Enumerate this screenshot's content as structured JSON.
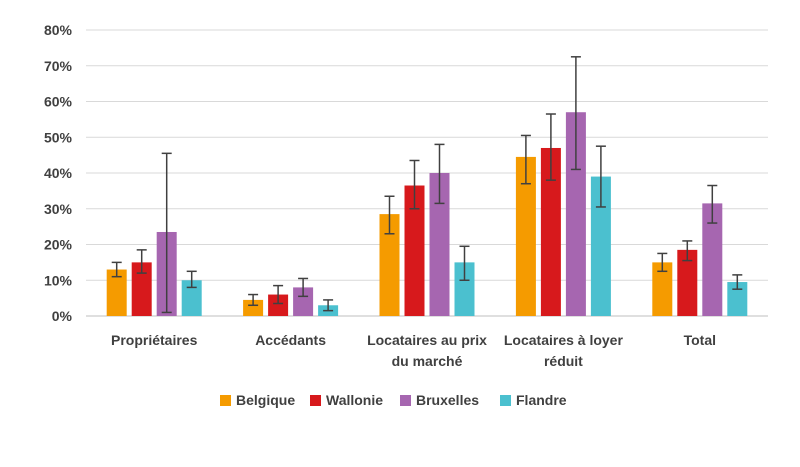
{
  "chart_data": {
    "type": "bar",
    "categories": [
      [
        "Propriétaires"
      ],
      [
        "Accédants"
      ],
      [
        "Locataires au prix",
        "du marché"
      ],
      [
        "Locataires à loyer",
        "réduit"
      ],
      [
        "Total"
      ]
    ],
    "ylim": [
      0,
      0.8
    ],
    "yticks": [
      {
        "value": 0.0,
        "label": "0%"
      },
      {
        "value": 0.1,
        "label": "10%"
      },
      {
        "value": 0.2,
        "label": "20%"
      },
      {
        "value": 0.3,
        "label": "30%"
      },
      {
        "value": 0.4,
        "label": "40%"
      },
      {
        "value": 0.5,
        "label": "50%"
      },
      {
        "value": 0.6,
        "label": "60%"
      },
      {
        "value": 0.7,
        "label": "70%"
      },
      {
        "value": 0.8,
        "label": "80%"
      }
    ],
    "grid": true,
    "legend_position": "bottom",
    "series": [
      {
        "name": "Belgique",
        "color": "#F59B00",
        "values": [
          0.13,
          0.045,
          0.285,
          0.445,
          0.15
        ],
        "err_low": [
          0.11,
          0.03,
          0.23,
          0.37,
          0.125
        ],
        "err_high": [
          0.15,
          0.06,
          0.335,
          0.505,
          0.175
        ]
      },
      {
        "name": "Wallonie",
        "color": "#D7191C",
        "values": [
          0.15,
          0.06,
          0.365,
          0.47,
          0.185
        ],
        "err_low": [
          0.12,
          0.035,
          0.3,
          0.38,
          0.155
        ],
        "err_high": [
          0.185,
          0.085,
          0.435,
          0.565,
          0.21
        ]
      },
      {
        "name": "Bruxelles",
        "color": "#A666B0",
        "values": [
          0.235,
          0.08,
          0.4,
          0.57,
          0.315
        ],
        "err_low": [
          0.01,
          0.055,
          0.315,
          0.41,
          0.26
        ],
        "err_high": [
          0.455,
          0.105,
          0.48,
          0.725,
          0.365
        ]
      },
      {
        "name": "Flandre",
        "color": "#4BC0CF",
        "values": [
          0.1,
          0.03,
          0.15,
          0.39,
          0.095
        ],
        "err_low": [
          0.08,
          0.015,
          0.1,
          0.305,
          0.075
        ],
        "err_high": [
          0.125,
          0.045,
          0.195,
          0.475,
          0.115
        ]
      }
    ]
  }
}
